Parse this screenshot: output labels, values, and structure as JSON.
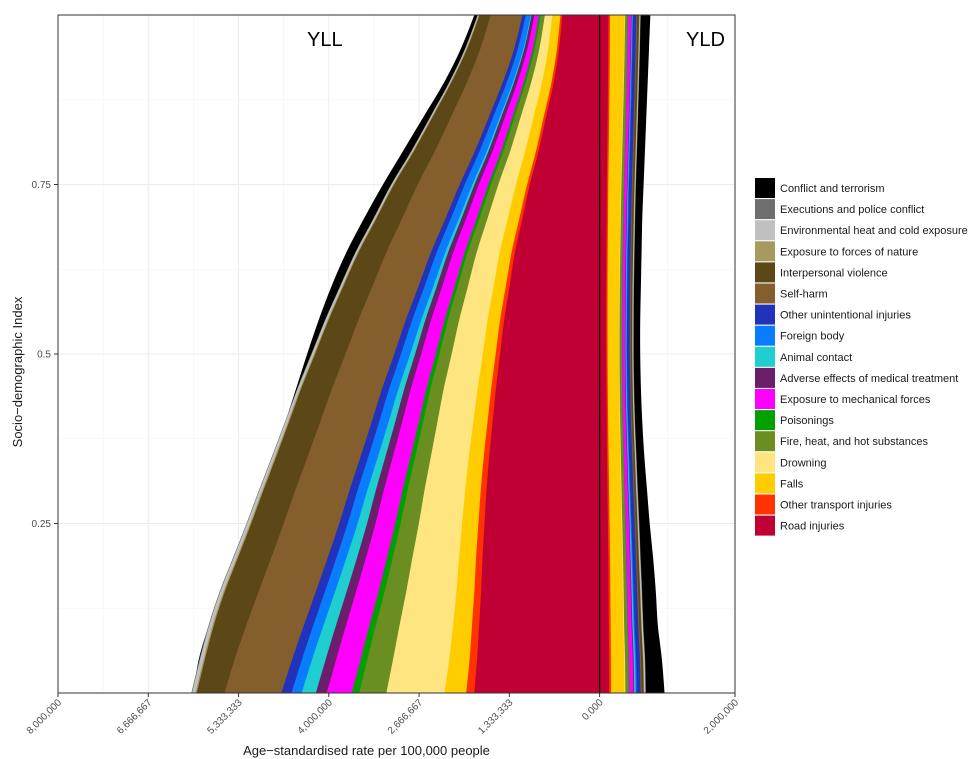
{
  "chart_data": {
    "type": "area",
    "title": "",
    "panel_labels": {
      "left": "YLL",
      "right": "YLD"
    },
    "xlabel": "Age−standardised rate per 100,000 people",
    "ylabel": "Socio−demographic Index",
    "xlim": [
      -8000000,
      2000000
    ],
    "ylim": [
      0,
      1
    ],
    "x_tick_values": [
      -8000000,
      -6666667,
      -5333333,
      -4000000,
      -2666667,
      -1333333,
      0,
      2000000
    ],
    "x_tick_labels": [
      "8,000,000",
      "6,666,667",
      "5,333,333",
      "4,000,000",
      "2,666,667",
      "1,333,333",
      "0.000",
      "2,000,000"
    ],
    "y_ticks": [
      0.25,
      0.5,
      0.75
    ],
    "y_tick_labels": [
      "0.25",
      "0.5",
      "0.75"
    ],
    "grid": true,
    "legend_position": "right",
    "sdi": [
      0.0,
      0.05,
      0.1,
      0.15,
      0.2,
      0.25,
      0.3,
      0.35,
      0.4,
      0.45,
      0.5,
      0.55,
      0.6,
      0.65,
      0.7,
      0.75,
      0.8,
      0.85,
      0.9,
      0.95,
      1.0
    ],
    "yll_total": [
      6000000,
      5920000,
      5770000,
      5580000,
      5360000,
      5160000,
      4970000,
      4800000,
      4640000,
      4480000,
      4320000,
      4150000,
      3960000,
      3740000,
      3480000,
      3200000,
      2900000,
      2600000,
      2300000,
      2050000,
      1850000
    ],
    "yld_total": [
      960000,
      920000,
      860000,
      830000,
      790000,
      740000,
      700000,
      660000,
      630000,
      610000,
      600000,
      600000,
      610000,
      620000,
      630000,
      650000,
      670000,
      690000,
      710000,
      730000,
      750000
    ],
    "series": [
      {
        "name": "Road injuries",
        "color": "#C00034",
        "yll": [
          1850000,
          1810000,
          1780000,
          1750000,
          1730000,
          1700000,
          1670000,
          1630000,
          1580000,
          1530000,
          1470000,
          1410000,
          1330000,
          1250000,
          1140000,
          1030000,
          900000,
          790000,
          680000,
          600000,
          550000
        ],
        "yld": [
          140000,
          138000,
          135000,
          132000,
          128000,
          122000,
          116000,
          110000,
          104000,
          100000,
          98000,
          97000,
          98000,
          100000,
          103000,
          107000,
          113000,
          119000,
          124000,
          128000,
          130000
        ]
      },
      {
        "name": "Other transport injuries",
        "color": "#FF3300",
        "yll": [
          120000,
          110000,
          105000,
          100000,
          95000,
          90000,
          85000,
          80000,
          75000,
          70000,
          65000,
          60000,
          55000,
          50000,
          45000,
          40000,
          38000,
          35000,
          32000,
          30000,
          28000
        ],
        "yld": [
          30000,
          30000,
          28000,
          27000,
          26000,
          25000,
          24000,
          23000,
          22000,
          21000,
          20000,
          20000,
          20000,
          20000,
          21000,
          21000,
          22000,
          22000,
          23000,
          23000,
          24000
        ]
      },
      {
        "name": "Falls",
        "color": "#FFCC00",
        "yll": [
          320000,
          300000,
          280000,
          265000,
          250000,
          240000,
          230000,
          220000,
          210000,
          200000,
          190000,
          185000,
          180000,
          175000,
          170000,
          165000,
          160000,
          150000,
          140000,
          130000,
          120000
        ],
        "yld": [
          200000,
          195000,
          188000,
          185000,
          182000,
          178000,
          175000,
          172000,
          170000,
          168000,
          168000,
          170000,
          173000,
          177000,
          181000,
          186000,
          192000,
          198000,
          204000,
          210000,
          216000
        ]
      },
      {
        "name": "Drowning",
        "color": "#FFE57F",
        "yll": [
          860000,
          830000,
          790000,
          740000,
          690000,
          640000,
          600000,
          560000,
          530000,
          500000,
          460000,
          420000,
          380000,
          340000,
          300000,
          260000,
          220000,
          190000,
          160000,
          130000,
          110000
        ],
        "yld": [
          12000,
          12000,
          11000,
          11000,
          10000,
          10000,
          9000,
          9000,
          8000,
          8000,
          8000,
          8000,
          8000,
          8000,
          8000,
          8000,
          8000,
          8000,
          8000,
          8000,
          8000
        ]
      },
      {
        "name": "Fire, heat, and hot substances",
        "color": "#6B8E23",
        "yll": [
          400000,
          380000,
          350000,
          320000,
          290000,
          270000,
          250000,
          230000,
          210000,
          195000,
          180000,
          165000,
          150000,
          135000,
          120000,
          110000,
          100000,
          90000,
          80000,
          70000,
          60000
        ],
        "yld": [
          50000,
          50000,
          48000,
          46000,
          44000,
          42000,
          40000,
          38000,
          36000,
          35000,
          34000,
          34000,
          34000,
          34000,
          35000,
          35000,
          36000,
          36000,
          37000,
          37000,
          38000
        ]
      },
      {
        "name": "Poisonings",
        "color": "#00A000",
        "yll": [
          110000,
          100000,
          95000,
          90000,
          85000,
          80000,
          75000,
          70000,
          65000,
          60000,
          55000,
          50000,
          45000,
          42000,
          40000,
          38000,
          35000,
          32000,
          30000,
          28000,
          26000
        ],
        "yld": [
          8000,
          8000,
          8000,
          7000,
          7000,
          7000,
          6000,
          6000,
          6000,
          6000,
          6000,
          6000,
          6000,
          6000,
          6000,
          6000,
          6000,
          6000,
          6000,
          6000,
          6000
        ]
      },
      {
        "name": "Exposure to mechanical forces",
        "color": "#FF00FF",
        "yll": [
          370000,
          360000,
          345000,
          330000,
          310000,
          290000,
          275000,
          260000,
          245000,
          230000,
          215000,
          200000,
          185000,
          170000,
          155000,
          140000,
          125000,
          110000,
          95000,
          80000,
          70000
        ],
        "yld": [
          60000,
          58000,
          55000,
          52000,
          50000,
          48000,
          46000,
          44000,
          42000,
          41000,
          40000,
          40000,
          40000,
          41000,
          41000,
          42000,
          42000,
          43000,
          43000,
          44000,
          44000
        ]
      },
      {
        "name": "Adverse effects of medical treatment",
        "color": "#6B1F6B",
        "yll": [
          160000,
          155000,
          148000,
          140000,
          132000,
          125000,
          118000,
          110000,
          103000,
          96000,
          90000,
          85000,
          80000,
          75000,
          70000,
          65000,
          60000,
          55000,
          50000,
          45000,
          40000
        ],
        "yld": [
          12000,
          12000,
          11000,
          11000,
          10000,
          10000,
          10000,
          9000,
          9000,
          9000,
          9000,
          9000,
          9000,
          9000,
          9000,
          9000,
          9000,
          9000,
          9000,
          9000,
          9000
        ]
      },
      {
        "name": "Animal contact",
        "color": "#1FCFCF",
        "yll": [
          210000,
          200000,
          185000,
          170000,
          155000,
          140000,
          125000,
          110000,
          98000,
          85000,
          72000,
          60000,
          50000,
          42000,
          36000,
          30000,
          25000,
          20000,
          16000,
          13000,
          10000
        ],
        "yld": [
          20000,
          20000,
          18000,
          17000,
          16000,
          15000,
          14000,
          13000,
          12000,
          11000,
          10000,
          10000,
          9000,
          9000,
          9000,
          8000,
          8000,
          8000,
          8000,
          8000,
          8000
        ]
      },
      {
        "name": "Foreign body",
        "color": "#0A7CFF",
        "yll": [
          150000,
          150000,
          150000,
          150000,
          148000,
          146000,
          144000,
          142000,
          140000,
          138000,
          136000,
          134000,
          130000,
          126000,
          120000,
          114000,
          106000,
          98000,
          90000,
          82000,
          75000
        ],
        "yld": [
          15000,
          15000,
          14000,
          14000,
          13000,
          13000,
          12000,
          12000,
          11000,
          11000,
          11000,
          11000,
          11000,
          11000,
          11000,
          11000,
          11000,
          11000,
          11000,
          11000,
          11000
        ]
      },
      {
        "name": "Other unintentional injuries",
        "color": "#2233BB",
        "yll": [
          150000,
          145000,
          140000,
          135000,
          130000,
          125000,
          120000,
          115000,
          110000,
          105000,
          100000,
          95000,
          90000,
          85000,
          80000,
          75000,
          70000,
          65000,
          60000,
          55000,
          50000
        ],
        "yld": [
          60000,
          58000,
          55000,
          53000,
          51000,
          49000,
          47000,
          45000,
          44000,
          43000,
          42000,
          42000,
          42000,
          43000,
          43000,
          44000,
          45000,
          46000,
          47000,
          48000,
          49000
        ]
      },
      {
        "name": "Self-harm",
        "color": "#855E2E",
        "yll": [
          840000,
          850000,
          850000,
          845000,
          835000,
          820000,
          800000,
          780000,
          760000,
          740000,
          720000,
          700000,
          680000,
          660000,
          640000,
          620000,
          590000,
          560000,
          530000,
          500000,
          470000
        ],
        "yld": [
          15000,
          15000,
          15000,
          15000,
          14000,
          14000,
          14000,
          14000,
          13000,
          13000,
          13000,
          13000,
          13000,
          13000,
          13000,
          13000,
          13000,
          13000,
          13000,
          13000,
          13000
        ]
      },
      {
        "name": "Interpersonal violence",
        "color": "#5C4716",
        "yll": [
          410000,
          440000,
          480000,
          500000,
          490000,
          480000,
          470000,
          465000,
          460000,
          455000,
          450000,
          440000,
          430000,
          410000,
          380000,
          350000,
          310000,
          270000,
          230000,
          195000,
          165000
        ],
        "yld": [
          30000,
          30000,
          29000,
          28000,
          27000,
          26000,
          25000,
          24000,
          23000,
          22000,
          22000,
          22000,
          22000,
          23000,
          23000,
          24000,
          25000,
          26000,
          27000,
          28000,
          29000
        ]
      },
      {
        "name": "Exposure to forces of nature",
        "color": "#A89A5F",
        "yll": [
          20000,
          20000,
          20000,
          20000,
          19000,
          19000,
          18000,
          18000,
          17000,
          17000,
          16000,
          16000,
          15000,
          15000,
          14000,
          14000,
          13000,
          13000,
          12000,
          12000,
          11000
        ],
        "yld": [
          5000,
          5000,
          5000,
          5000,
          5000,
          5000,
          5000,
          5000,
          5000,
          5000,
          5000,
          5000,
          5000,
          5000,
          5000,
          5000,
          5000,
          5000,
          5000,
          5000,
          5000
        ]
      },
      {
        "name": "Environmental heat and cold exposure",
        "color": "#C0C0C0",
        "yll": [
          50000,
          50000,
          48000,
          46000,
          44000,
          42000,
          40000,
          38000,
          36000,
          34000,
          32000,
          30000,
          28000,
          26000,
          24000,
          22000,
          20000,
          18000,
          16000,
          14000,
          12000
        ],
        "yld": [
          20000,
          20000,
          19000,
          18000,
          17000,
          16000,
          15000,
          14000,
          13000,
          12000,
          12000,
          12000,
          12000,
          12000,
          12000,
          12000,
          12000,
          12000,
          12000,
          12000,
          12000
        ]
      },
      {
        "name": "Executions and police conflict",
        "color": "#6E6E6E",
        "yll": [
          10000,
          10000,
          10000,
          10000,
          10000,
          9000,
          9000,
          9000,
          8000,
          8000,
          8000,
          8000,
          7000,
          7000,
          7000,
          7000,
          6000,
          6000,
          6000,
          6000,
          5000
        ],
        "yld": [
          8000,
          8000,
          8000,
          8000,
          7000,
          7000,
          7000,
          7000,
          6000,
          6000,
          6000,
          6000,
          6000,
          6000,
          6000,
          6000,
          6000,
          6000,
          6000,
          6000,
          6000
        ]
      },
      {
        "name": "Conflict and terrorism",
        "color": "#000000",
        "yll": [
          0,
          0,
          0,
          0,
          0,
          0,
          0,
          0,
          0,
          0,
          0,
          0,
          0,
          0,
          0,
          0,
          0,
          0,
          0,
          0,
          0
        ],
        "yld": [
          0,
          0,
          0,
          0,
          0,
          0,
          0,
          0,
          0,
          0,
          0,
          0,
          0,
          0,
          0,
          0,
          0,
          0,
          0,
          0,
          0
        ]
      }
    ],
    "legend": [
      {
        "name": "Conflict and terrorism",
        "color": "#000000"
      },
      {
        "name": "Executions and police conflict",
        "color": "#6E6E6E"
      },
      {
        "name": "Environmental heat and cold exposure",
        "color": "#C0C0C0"
      },
      {
        "name": "Exposure to forces of nature",
        "color": "#A89A5F"
      },
      {
        "name": "Interpersonal violence",
        "color": "#5C4716"
      },
      {
        "name": "Self-harm",
        "color": "#855E2E"
      },
      {
        "name": "Other unintentional injuries",
        "color": "#2233BB"
      },
      {
        "name": "Foreign body",
        "color": "#0A7CFF"
      },
      {
        "name": "Animal contact",
        "color": "#1FCFCF"
      },
      {
        "name": "Adverse effects of medical treatment",
        "color": "#6B1F6B"
      },
      {
        "name": "Exposure to mechanical forces",
        "color": "#FF00FF"
      },
      {
        "name": "Poisonings",
        "color": "#00A000"
      },
      {
        "name": "Fire, heat, and hot substances",
        "color": "#6B8E23"
      },
      {
        "name": "Drowning",
        "color": "#FFE57F"
      },
      {
        "name": "Falls",
        "color": "#FFCC00"
      },
      {
        "name": "Other transport injuries",
        "color": "#FF3300"
      },
      {
        "name": "Road injuries",
        "color": "#C00034"
      }
    ]
  }
}
